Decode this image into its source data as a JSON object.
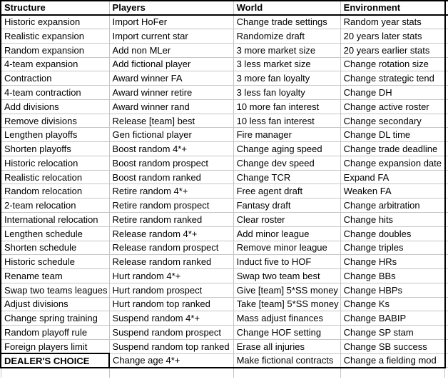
{
  "table": {
    "headers": [
      "Structure",
      "Players",
      "World",
      "Environment"
    ],
    "rows": [
      [
        "Historic expansion",
        "Import HoFer",
        "Change trade settings",
        "Random year stats"
      ],
      [
        "Realistic expansion",
        "Import current star",
        "Randomize draft",
        "20 years later stats"
      ],
      [
        "Random expansion",
        "Add non MLer",
        "3 more market size",
        "20 years earlier stats"
      ],
      [
        "4-team expansion",
        "Add fictional player",
        "3 less market size",
        "Change rotation size"
      ],
      [
        "Contraction",
        "Award winner FA",
        "3 more fan loyalty",
        "Change strategic tend"
      ],
      [
        "4-team contraction",
        "Award winner retire",
        "3 less fan loyalty",
        "Change DH"
      ],
      [
        "Add divisions",
        "Award winner rand",
        "10 more fan interest",
        "Change active roster"
      ],
      [
        "Remove divisions",
        "Release [team] best",
        "10 less fan interest",
        "Change secondary"
      ],
      [
        "Lengthen playoffs",
        "Gen fictional player",
        "Fire manager",
        "Change DL time"
      ],
      [
        "Shorten playoffs",
        "Boost random 4*+",
        "Change aging speed",
        "Change trade deadline"
      ],
      [
        "Historic relocation",
        "Boost random prospect",
        "Change dev speed",
        "Change expansion date"
      ],
      [
        "Realistic relocation",
        "Boost random ranked",
        "Change TCR",
        "Expand FA"
      ],
      [
        "Random relocation",
        "Retire random 4*+",
        "Free agent draft",
        "Weaken FA"
      ],
      [
        "2-team relocation",
        "Retire random prospect",
        "Fantasy draft",
        "Change arbitration"
      ],
      [
        "International relocation",
        "Retire random ranked",
        "Clear roster",
        "Change hits"
      ],
      [
        "Lengthen schedule",
        "Release random 4*+",
        "Add minor league",
        "Change doubles"
      ],
      [
        "Shorten schedule",
        "Release random prospect",
        "Remove minor league",
        "Change triples"
      ],
      [
        "Historic schedule",
        "Release random ranked",
        "Induct five to HOF",
        "Change HRs"
      ],
      [
        "Rename team",
        "Hurt random 4*+",
        "Swap two team best",
        "Change BBs"
      ],
      [
        "Swap two teams leagues",
        "Hurt random prospect",
        "Give [team] 5*SS money",
        "Change HBPs"
      ],
      [
        "Adjust divisions",
        "Hurt random top ranked",
        "Take [team] 5*SS money",
        "Change Ks"
      ],
      [
        "Change spring training",
        "Suspend random 4*+",
        "Mass adjust finances",
        "Change BABIP"
      ],
      [
        "Random playoff rule",
        "Suspend random prospect",
        "Change HOF setting",
        "Change SP stam"
      ],
      [
        "Foreign players limit",
        "Suspend random top ranked",
        "Erase all injuries",
        "Change SB success"
      ],
      [
        "DEALER'S CHOICE",
        "Change age 4*+",
        "Make fictional contracts",
        "Change a fielding mod"
      ]
    ]
  },
  "colors": {
    "grid": "#c6c6c6",
    "border": "#000000",
    "text": "#000000",
    "background": "#ffffff"
  }
}
